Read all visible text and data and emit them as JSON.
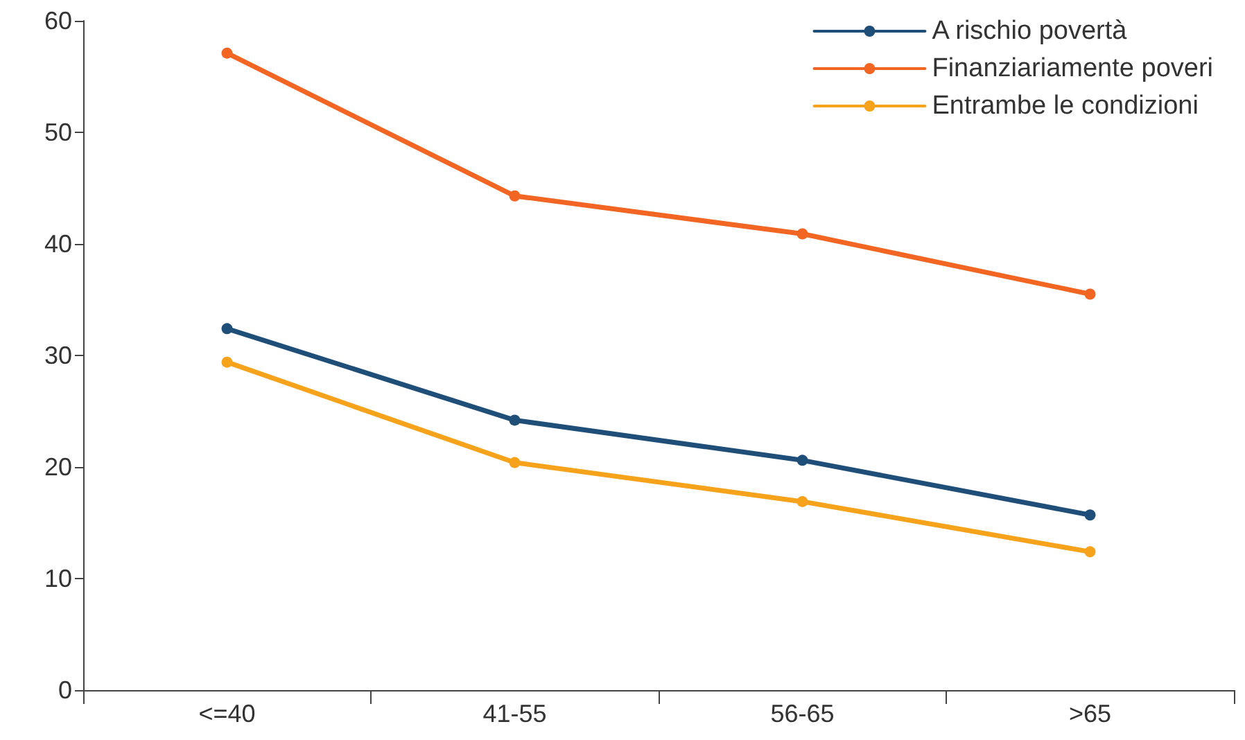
{
  "chart_data": {
    "type": "line",
    "categories": [
      "<=40",
      "41-55",
      "56-65",
      ">65"
    ],
    "series": [
      {
        "name": "A rischio povertà",
        "color": "#1f4e79",
        "values": [
          32.4,
          24.2,
          20.6,
          15.7
        ]
      },
      {
        "name": "Finanziariamente poveri",
        "color": "#f26522",
        "values": [
          57.1,
          44.3,
          40.9,
          35.5
        ]
      },
      {
        "name": "Entrambe le condizioni",
        "color": "#f7a21b",
        "values": [
          29.4,
          20.4,
          16.9,
          12.4
        ]
      }
    ],
    "ylim": [
      0,
      60
    ],
    "yticks": [
      0,
      10,
      20,
      30,
      40,
      50,
      60
    ],
    "grid": false,
    "legend": "top right",
    "marker": "circle",
    "line_style": "solid"
  }
}
